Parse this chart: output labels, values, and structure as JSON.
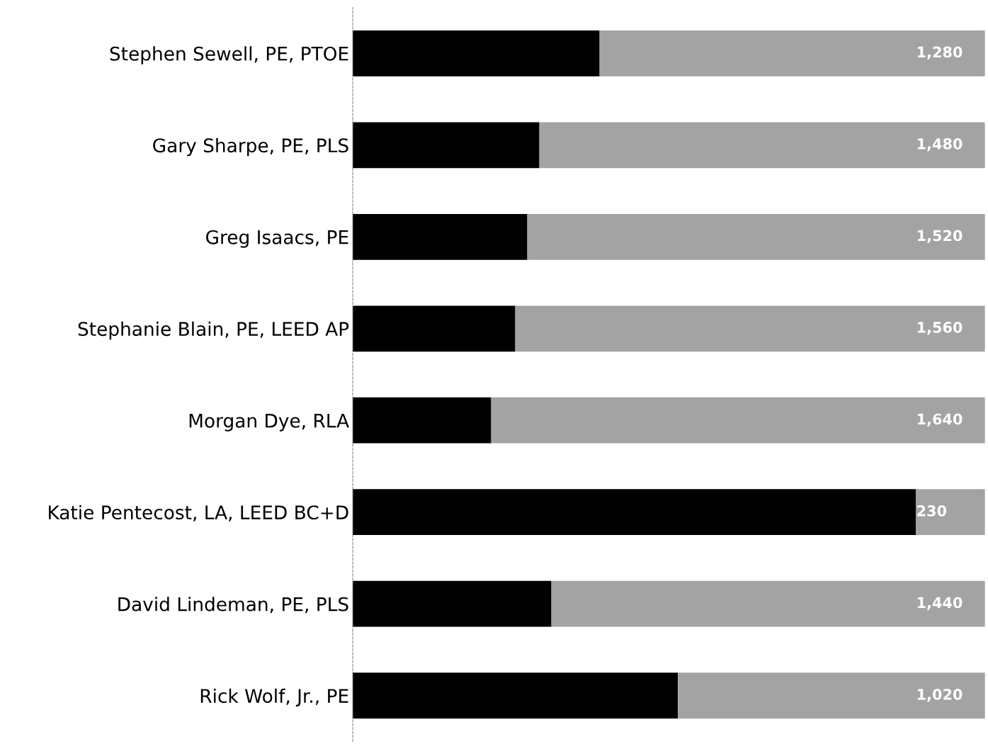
{
  "chart_data": {
    "type": "bar",
    "orientation": "horizontal",
    "stacked": true,
    "categories": [
      "Stephen Sewell, PE, PTOE",
      "Gary Sharpe, PE, PLS",
      "Greg Isaacs, PE",
      "Stephanie Blain, PE, LEED AP",
      "Morgan Dye, RLA",
      "Katie Pentecost, LA, LEED BC+D",
      "David Lindeman, PE, PLS",
      "Rick Wolf, Jr., PE"
    ],
    "series": [
      {
        "color": "#000000",
        "values": [
          820,
          620,
          580,
          540,
          460,
          1870,
          660,
          1080
        ]
      },
      {
        "color": "#a3a3a3",
        "values": [
          1280,
          1480,
          1520,
          1560,
          1640,
          230,
          1440,
          1020
        ],
        "value_labels": [
          "1,280",
          "1,480",
          "1,520",
          "1,560",
          "1,640",
          "230",
          "1,440",
          "1,020"
        ]
      }
    ],
    "xlim": [
      0,
      2100
    ],
    "tick_labels": "y",
    "grid": false,
    "legend": false
  }
}
